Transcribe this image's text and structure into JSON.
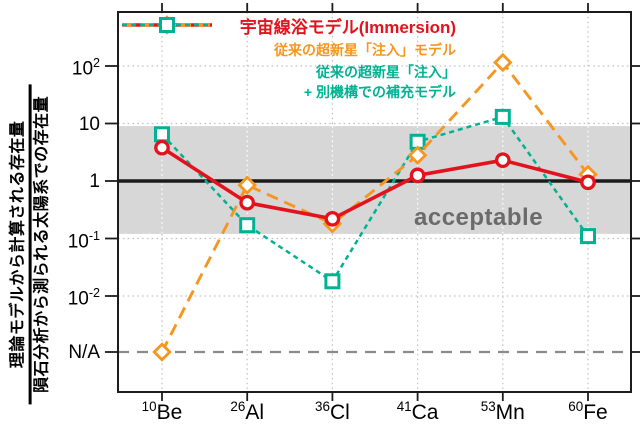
{
  "chart_data": {
    "type": "line",
    "scale": "log",
    "ylabel_numerator": "理論モデルから計算される存在量",
    "ylabel_denominator": "隕石分析から測られる太陽系での存在量",
    "band_label": "acceptable",
    "band": {
      "from": 0.12,
      "to": 9
    },
    "na_label": "N/A",
    "grid": "dotted",
    "axis_ranges": {
      "y_min_decade": 0.01,
      "y_max_decade": 100
    },
    "categories": [
      {
        "mass": "10",
        "symbol": "Be"
      },
      {
        "mass": "26",
        "symbol": "Al"
      },
      {
        "mass": "36",
        "symbol": "Cl"
      },
      {
        "mass": "41",
        "symbol": "Ca"
      },
      {
        "mass": "53",
        "symbol": "Mn"
      },
      {
        "mass": "60",
        "symbol": "Fe"
      }
    ],
    "y_ticks": [
      {
        "base": "10",
        "exp": "2",
        "value": 100
      },
      {
        "base": "10",
        "exp": "",
        "value": 10
      },
      {
        "base": "1",
        "exp": "",
        "value": 1
      },
      {
        "base": "10",
        "exp": "-1",
        "value": 0.1
      },
      {
        "base": "10",
        "exp": "-2",
        "value": 0.01
      },
      {
        "base": "N/A",
        "exp": "",
        "value": "N/A"
      }
    ],
    "series": [
      {
        "name_lines": [
          "宇宙線浴モデル(Immersion)"
        ],
        "color": "#e2131d",
        "marker": "circle",
        "line_style": "solid",
        "values": [
          3.8,
          0.42,
          0.22,
          1.25,
          2.3,
          0.95
        ]
      },
      {
        "name_lines": [
          "従来の超新星「注入」モデル"
        ],
        "color": "#f6961e",
        "marker": "diamond",
        "line_style": "long-dash",
        "values": [
          "N/A",
          0.85,
          0.18,
          2.8,
          115,
          1.3
        ]
      },
      {
        "name_lines": [
          "従来の超新星「注入」",
          "+ 別機構での補充モデル"
        ],
        "color": "#00b292",
        "marker": "square",
        "line_style": "short-dash",
        "values": [
          6.5,
          0.17,
          0.018,
          4.8,
          13,
          0.11
        ]
      }
    ]
  },
  "colors": {
    "band": "#d7d7d7",
    "frame": "#1c1c1c",
    "unity_line": "#1c1c1c",
    "na_line": "#8a8a8a",
    "grid": "#c3c3c3",
    "grid_on_band": "#ffffff",
    "band_label": "#6b6b6b"
  }
}
